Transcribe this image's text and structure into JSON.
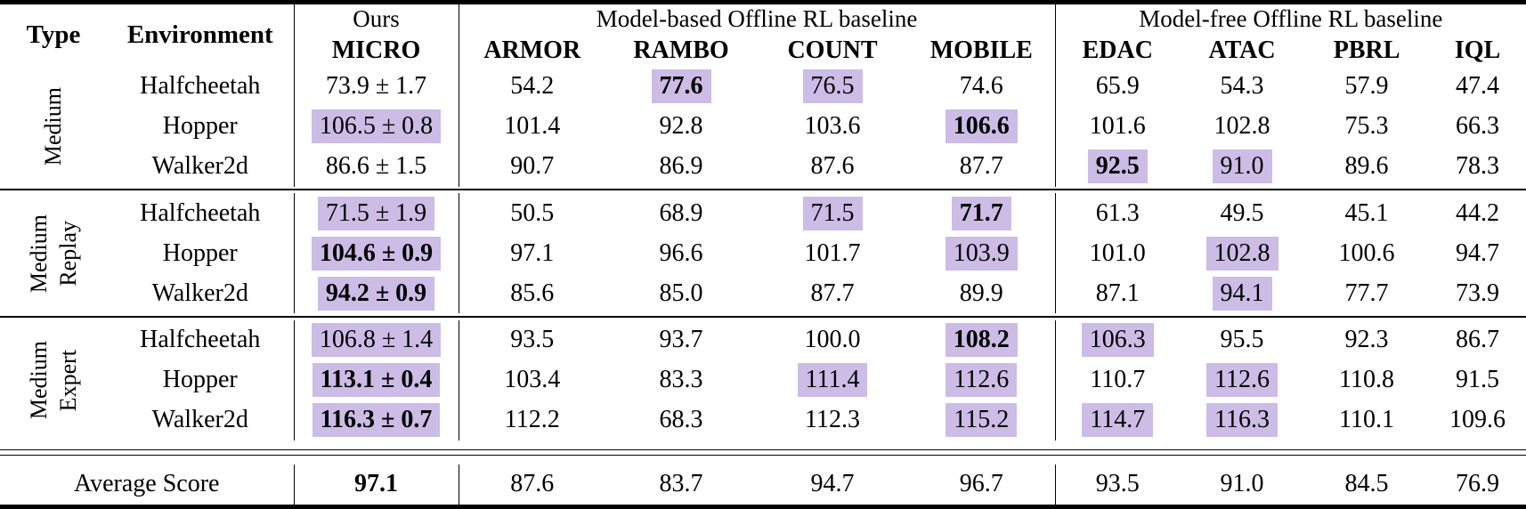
{
  "colors": {
    "highlight": "#ccbce6",
    "rule": "#000000",
    "background": "#ffffff"
  },
  "table": {
    "header": {
      "type": "Type",
      "environment": "Environment",
      "ours_label": "Ours",
      "ours_method": "MICRO",
      "groups": [
        {
          "label": "Model-based Offline RL baseline",
          "columns": [
            "ARMOR",
            "RAMBO",
            "COUNT",
            "MOBILE"
          ]
        },
        {
          "label": "Model-free Offline RL baseline",
          "columns": [
            "EDAC",
            "ATAC",
            "PBRL",
            "IQL"
          ]
        }
      ]
    },
    "row_groups": [
      {
        "type_label": [
          "Medium"
        ],
        "rows": [
          {
            "env": "Halfcheetah",
            "micro": {
              "v": "73.9 ± 1.7",
              "b": false,
              "h": false
            },
            "values": [
              {
                "v": "54.2",
                "b": false,
                "h": false
              },
              {
                "v": "77.6",
                "b": true,
                "h": true
              },
              {
                "v": "76.5",
                "b": false,
                "h": true
              },
              {
                "v": "74.6",
                "b": false,
                "h": false
              },
              {
                "v": "65.9",
                "b": false,
                "h": false
              },
              {
                "v": "54.3",
                "b": false,
                "h": false
              },
              {
                "v": "57.9",
                "b": false,
                "h": false
              },
              {
                "v": "47.4",
                "b": false,
                "h": false
              }
            ]
          },
          {
            "env": "Hopper",
            "micro": {
              "v": "106.5 ± 0.8",
              "b": false,
              "h": true
            },
            "values": [
              {
                "v": "101.4",
                "b": false,
                "h": false
              },
              {
                "v": "92.8",
                "b": false,
                "h": false
              },
              {
                "v": "103.6",
                "b": false,
                "h": false
              },
              {
                "v": "106.6",
                "b": true,
                "h": true
              },
              {
                "v": "101.6",
                "b": false,
                "h": false
              },
              {
                "v": "102.8",
                "b": false,
                "h": false
              },
              {
                "v": "75.3",
                "b": false,
                "h": false
              },
              {
                "v": "66.3",
                "b": false,
                "h": false
              }
            ]
          },
          {
            "env": "Walker2d",
            "micro": {
              "v": "86.6 ± 1.5",
              "b": false,
              "h": false
            },
            "values": [
              {
                "v": "90.7",
                "b": false,
                "h": false
              },
              {
                "v": "86.9",
                "b": false,
                "h": false
              },
              {
                "v": "87.6",
                "b": false,
                "h": false
              },
              {
                "v": "87.7",
                "b": false,
                "h": false
              },
              {
                "v": "92.5",
                "b": true,
                "h": true
              },
              {
                "v": "91.0",
                "b": false,
                "h": true
              },
              {
                "v": "89.6",
                "b": false,
                "h": false
              },
              {
                "v": "78.3",
                "b": false,
                "h": false
              }
            ]
          }
        ]
      },
      {
        "type_label": [
          "Medium",
          "Replay"
        ],
        "rows": [
          {
            "env": "Halfcheetah",
            "micro": {
              "v": "71.5 ± 1.9",
              "b": false,
              "h": true
            },
            "values": [
              {
                "v": "50.5",
                "b": false,
                "h": false
              },
              {
                "v": "68.9",
                "b": false,
                "h": false
              },
              {
                "v": "71.5",
                "b": false,
                "h": true
              },
              {
                "v": "71.7",
                "b": true,
                "h": true
              },
              {
                "v": "61.3",
                "b": false,
                "h": false
              },
              {
                "v": "49.5",
                "b": false,
                "h": false
              },
              {
                "v": "45.1",
                "b": false,
                "h": false
              },
              {
                "v": "44.2",
                "b": false,
                "h": false
              }
            ]
          },
          {
            "env": "Hopper",
            "micro": {
              "v": "104.6 ± 0.9",
              "b": true,
              "h": true
            },
            "values": [
              {
                "v": "97.1",
                "b": false,
                "h": false
              },
              {
                "v": "96.6",
                "b": false,
                "h": false
              },
              {
                "v": "101.7",
                "b": false,
                "h": false
              },
              {
                "v": "103.9",
                "b": false,
                "h": true
              },
              {
                "v": "101.0",
                "b": false,
                "h": false
              },
              {
                "v": "102.8",
                "b": false,
                "h": true
              },
              {
                "v": "100.6",
                "b": false,
                "h": false
              },
              {
                "v": "94.7",
                "b": false,
                "h": false
              }
            ]
          },
          {
            "env": "Walker2d",
            "micro": {
              "v": "94.2 ± 0.9",
              "b": true,
              "h": true
            },
            "values": [
              {
                "v": "85.6",
                "b": false,
                "h": false
              },
              {
                "v": "85.0",
                "b": false,
                "h": false
              },
              {
                "v": "87.7",
                "b": false,
                "h": false
              },
              {
                "v": "89.9",
                "b": false,
                "h": false
              },
              {
                "v": "87.1",
                "b": false,
                "h": false
              },
              {
                "v": "94.1",
                "b": false,
                "h": true
              },
              {
                "v": "77.7",
                "b": false,
                "h": false
              },
              {
                "v": "73.9",
                "b": false,
                "h": false
              }
            ]
          }
        ]
      },
      {
        "type_label": [
          "Medium",
          "Expert"
        ],
        "rows": [
          {
            "env": "Halfcheetah",
            "micro": {
              "v": "106.8 ± 1.4",
              "b": false,
              "h": true
            },
            "values": [
              {
                "v": "93.5",
                "b": false,
                "h": false
              },
              {
                "v": "93.7",
                "b": false,
                "h": false
              },
              {
                "v": "100.0",
                "b": false,
                "h": false
              },
              {
                "v": "108.2",
                "b": true,
                "h": true
              },
              {
                "v": "106.3",
                "b": false,
                "h": true
              },
              {
                "v": "95.5",
                "b": false,
                "h": false
              },
              {
                "v": "92.3",
                "b": false,
                "h": false
              },
              {
                "v": "86.7",
                "b": false,
                "h": false
              }
            ]
          },
          {
            "env": "Hopper",
            "micro": {
              "v": "113.1 ± 0.4",
              "b": true,
              "h": true
            },
            "values": [
              {
                "v": "103.4",
                "b": false,
                "h": false
              },
              {
                "v": "83.3",
                "b": false,
                "h": false
              },
              {
                "v": "111.4",
                "b": false,
                "h": true
              },
              {
                "v": "112.6",
                "b": false,
                "h": true
              },
              {
                "v": "110.7",
                "b": false,
                "h": false
              },
              {
                "v": "112.6",
                "b": false,
                "h": true
              },
              {
                "v": "110.8",
                "b": false,
                "h": false
              },
              {
                "v": "91.5",
                "b": false,
                "h": false
              }
            ]
          },
          {
            "env": "Walker2d",
            "micro": {
              "v": "116.3 ± 0.7",
              "b": true,
              "h": true
            },
            "values": [
              {
                "v": "112.2",
                "b": false,
                "h": false
              },
              {
                "v": "68.3",
                "b": false,
                "h": false
              },
              {
                "v": "112.3",
                "b": false,
                "h": false
              },
              {
                "v": "115.2",
                "b": false,
                "h": true
              },
              {
                "v": "114.7",
                "b": false,
                "h": true
              },
              {
                "v": "116.3",
                "b": false,
                "h": true
              },
              {
                "v": "110.1",
                "b": false,
                "h": false
              },
              {
                "v": "109.6",
                "b": false,
                "h": false
              }
            ]
          }
        ]
      }
    ],
    "footer": {
      "label": "Average Score",
      "micro": {
        "v": "97.1",
        "b": true,
        "h": false
      },
      "values": [
        {
          "v": "87.6",
          "b": false,
          "h": false
        },
        {
          "v": "83.7",
          "b": false,
          "h": false
        },
        {
          "v": "94.7",
          "b": false,
          "h": false
        },
        {
          "v": "96.7",
          "b": false,
          "h": false
        },
        {
          "v": "93.5",
          "b": false,
          "h": false
        },
        {
          "v": "91.0",
          "b": false,
          "h": false
        },
        {
          "v": "84.5",
          "b": false,
          "h": false
        },
        {
          "v": "76.9",
          "b": false,
          "h": false
        }
      ]
    }
  }
}
